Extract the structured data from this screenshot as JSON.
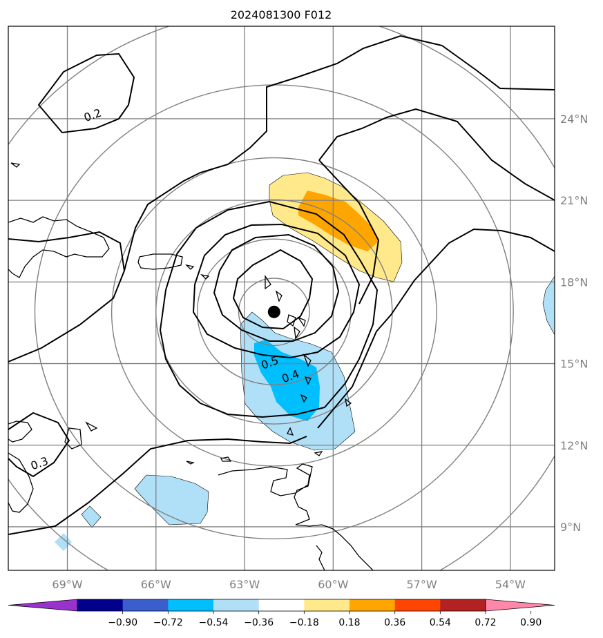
{
  "title": "2024081300 F012",
  "map": {
    "lon_range": [
      -71,
      -52.5
    ],
    "lat_range": [
      7.4,
      27.4
    ],
    "lon_ticks": [
      {
        "value": -69,
        "label": "69°W"
      },
      {
        "value": -66,
        "label": "66°W"
      },
      {
        "value": -63,
        "label": "63°W"
      },
      {
        "value": -60,
        "label": "60°W"
      },
      {
        "value": -57,
        "label": "57°W"
      },
      {
        "value": -54,
        "label": "54°W"
      }
    ],
    "lat_ticks": [
      {
        "value": 9,
        "label": "9°N"
      },
      {
        "value": 12,
        "label": "12°N"
      },
      {
        "value": 15,
        "label": "15°N"
      },
      {
        "value": 18,
        "label": "18°N"
      },
      {
        "value": 21,
        "label": "21°N"
      },
      {
        "value": 24,
        "label": "24°N"
      }
    ],
    "grid": true,
    "center_marker": {
      "lon": -62.0,
      "lat": 16.9
    },
    "contour_labels": [
      {
        "text": "0.2",
        "lon": -68.1,
        "lat": 24.0
      },
      {
        "text": "0.3",
        "lon": -69.9,
        "lat": 11.2
      },
      {
        "text": "0.5",
        "lon": -62.1,
        "lat": 14.9
      },
      {
        "text": "0.4",
        "lon": -61.4,
        "lat": 14.4
      }
    ]
  },
  "colorbar": {
    "tick_labels": [
      "−0.90",
      "−0.72",
      "−0.54",
      "−0.36",
      "−0.18",
      "0.18",
      "0.36",
      "0.54",
      "0.72",
      "0.90"
    ],
    "colors": [
      "#9932cc",
      "#00008b",
      "#3a5fcd",
      "#00bfff",
      "#b0e0f8",
      "#ffffff",
      "#ffe98a",
      "#ffa500",
      "#ff4500",
      "#b22222",
      "#ff88aa"
    ]
  },
  "colors": {
    "grid": "#808080",
    "range_ring": "#808080",
    "contour": "#000000",
    "fill_light_blue": "#b0e0f8",
    "fill_blue": "#00bfff",
    "fill_yellow": "#ffe98a",
    "fill_orange": "#ffa500"
  }
}
